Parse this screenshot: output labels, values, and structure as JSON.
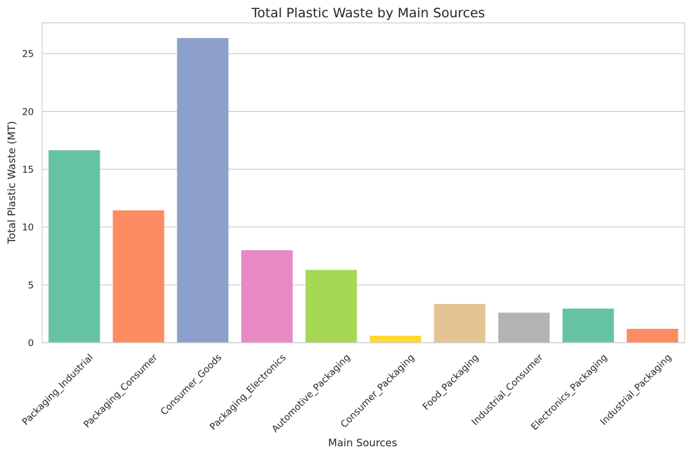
{
  "chart_data": {
    "type": "bar",
    "title": "Total Plastic Waste by Main Sources",
    "xlabel": "Main Sources",
    "ylabel": "Total Plastic Waste (MT)",
    "categories": [
      "Packaging_Industrial",
      "Packaging_Consumer",
      "Consumer_Goods",
      "Packaging_Electronics",
      "Automotive_Packaging",
      "Consumer_Packaging",
      "Food_Packaging",
      "Industrial_Consumer",
      "Electronics_Packaging",
      "Industrial_Packaging"
    ],
    "values": [
      16.65,
      11.45,
      26.35,
      8.0,
      6.3,
      0.6,
      3.35,
      2.6,
      2.95,
      1.2
    ],
    "colors": [
      "#66c2a5",
      "#fc8d62",
      "#8da0cb",
      "#e78ac3",
      "#a6d854",
      "#ffd92f",
      "#e5c494",
      "#b3b3b3",
      "#66c2a5",
      "#fc8d62"
    ],
    "ylim": [
      0,
      27.67
    ],
    "yticks": [
      0,
      5,
      10,
      15,
      20,
      25
    ],
    "grid": "horizontal",
    "legend": "none"
  }
}
